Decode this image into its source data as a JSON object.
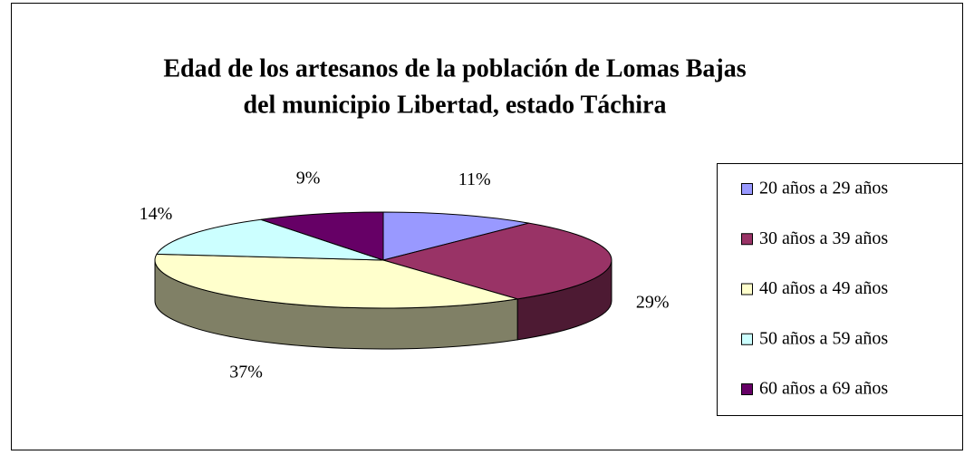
{
  "chart_data": {
    "type": "pie",
    "title": [
      "Edad de los artesanos de la población de Lomas Bajas",
      "del municipio Libertad, estado Táchira"
    ],
    "categories": [
      "20 años a 29 años",
      "30 años a 39 años",
      "40 años a 49 años",
      "50 años a 59 años",
      "60 años a 69 años"
    ],
    "values": [
      11,
      29,
      37,
      14,
      9
    ],
    "value_labels": [
      "11%",
      "29%",
      "37%",
      "14%",
      "9%"
    ],
    "colors": [
      "#9999ff",
      "#993366",
      "#ffffcc",
      "#ccffff",
      "#660066"
    ],
    "legend": "right"
  }
}
